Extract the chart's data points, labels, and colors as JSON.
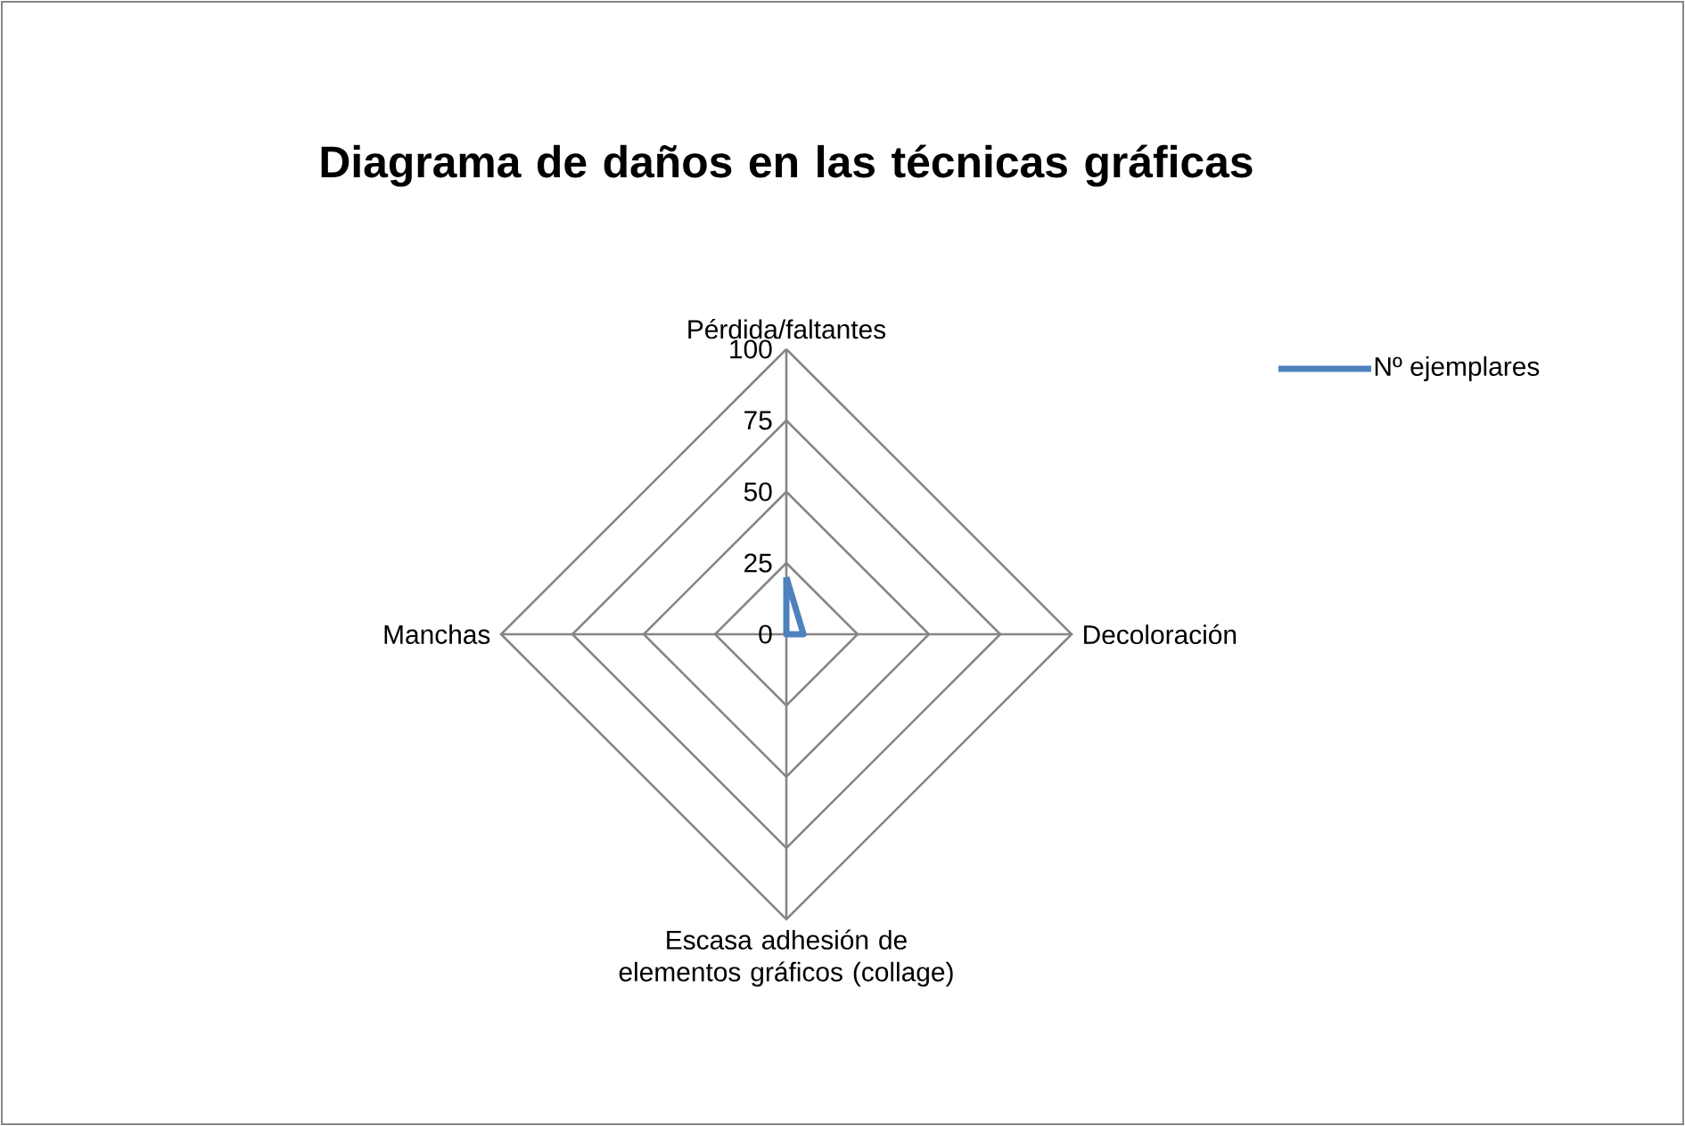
{
  "chart_data": {
    "type": "radar",
    "title": "Diagrama de daños en las técnicas gráficas",
    "categories": [
      "Pérdida/faltantes",
      "Decoloración",
      "Escasa adhesión de elementos gráficos (collage)",
      "Manchas"
    ],
    "series": [
      {
        "name": "Nº ejemplares",
        "color": "#4f81bd",
        "values": [
          20,
          6,
          0,
          0
        ]
      }
    ],
    "ylim": [
      0,
      100
    ],
    "yticks": [
      0,
      25,
      50,
      75,
      100
    ],
    "grid": true,
    "legend": "right"
  }
}
